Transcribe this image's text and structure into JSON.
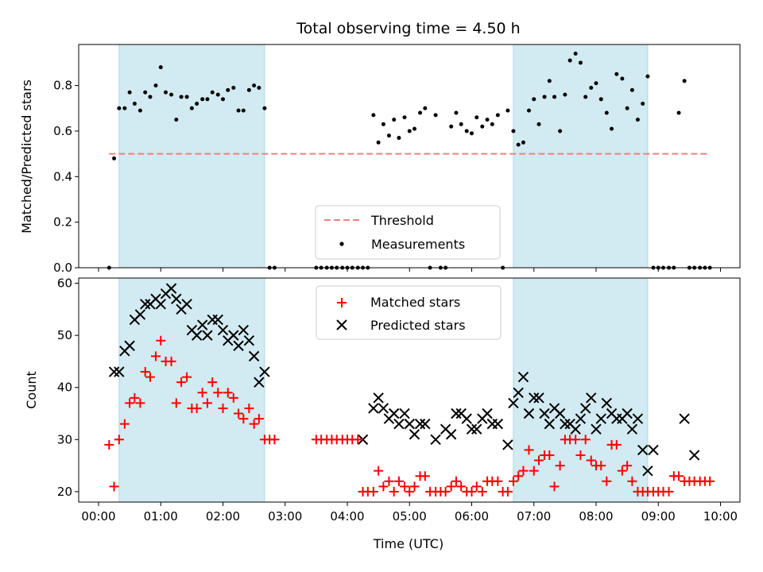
{
  "chart_data": {
    "title": "Total observing time = 4.50 h",
    "xlabel": "Time (UTC)",
    "x_tick_labels": [
      "00:00",
      "01:00",
      "02:00",
      "03:00",
      "04:00",
      "05:00",
      "06:00",
      "07:00",
      "08:00",
      "09:00",
      "10:00"
    ],
    "shaded_intervals_hours": [
      [
        0.33,
        2.67
      ],
      [
        6.67,
        8.83
      ]
    ],
    "shade_color": "#add8e6",
    "panels": [
      {
        "type": "scatter",
        "ylabel": "Matched/Predicted stars",
        "ylim": [
          0,
          0.98
        ],
        "yticks": [
          0.0,
          0.2,
          0.4,
          0.6,
          0.8
        ],
        "ytick_labels": [
          "0.0",
          "0.2",
          "0.4",
          "0.6",
          "0.8"
        ],
        "legend_position": "lower-center",
        "threshold": {
          "name": "Threshold",
          "value": 0.5,
          "x_range": [
            0.17,
            9.83
          ],
          "color": "#f08080"
        },
        "series": [
          {
            "name": "Measurements",
            "color": "#000000",
            "marker": "dot",
            "x": [
              0.17,
              0.25,
              0.33,
              0.42,
              0.5,
              0.58,
              0.67,
              0.75,
              0.83,
              0.92,
              1.0,
              1.08,
              1.17,
              1.25,
              1.33,
              1.42,
              1.5,
              1.58,
              1.67,
              1.75,
              1.83,
              1.92,
              2.0,
              2.08,
              2.17,
              2.25,
              2.33,
              2.42,
              2.5,
              2.58,
              2.67,
              2.75,
              2.83,
              3.5,
              3.58,
              3.67,
              3.75,
              3.83,
              3.92,
              4.0,
              4.08,
              4.17,
              4.25,
              4.33,
              4.42,
              4.5,
              4.58,
              4.67,
              4.75,
              4.83,
              4.92,
              5.0,
              5.08,
              5.17,
              5.25,
              5.33,
              5.42,
              5.5,
              5.58,
              5.67,
              5.75,
              5.83,
              5.92,
              6.0,
              6.08,
              6.17,
              6.25,
              6.33,
              6.42,
              6.5,
              6.58,
              6.67,
              6.75,
              6.83,
              6.92,
              7.0,
              7.08,
              7.17,
              7.25,
              7.33,
              7.42,
              7.5,
              7.58,
              7.67,
              7.75,
              7.83,
              7.92,
              8.0,
              8.08,
              8.17,
              8.25,
              8.33,
              8.42,
              8.5,
              8.58,
              8.67,
              8.75,
              8.83,
              8.92,
              9.0,
              9.08,
              9.17,
              9.25,
              9.33,
              9.42,
              9.5,
              9.58,
              9.67,
              9.75,
              9.83
            ],
            "y": [
              0.0,
              0.48,
              0.7,
              0.7,
              0.77,
              0.72,
              0.69,
              0.77,
              0.75,
              0.8,
              0.88,
              0.77,
              0.76,
              0.65,
              0.75,
              0.75,
              0.7,
              0.72,
              0.74,
              0.74,
              0.77,
              0.76,
              0.74,
              0.78,
              0.79,
              0.69,
              0.69,
              0.78,
              0.8,
              0.79,
              0.7,
              0.0,
              0.0,
              0.0,
              0.0,
              0.0,
              0.0,
              0.0,
              0.0,
              0.0,
              0.0,
              0.0,
              0.0,
              0.0,
              0.67,
              0.55,
              0.63,
              0.58,
              0.65,
              0.57,
              0.66,
              0.6,
              0.61,
              0.68,
              0.7,
              0.0,
              0.67,
              0.0,
              0.0,
              0.62,
              0.68,
              0.63,
              0.6,
              0.59,
              0.66,
              0.62,
              0.65,
              0.63,
              0.67,
              0.0,
              0.69,
              0.6,
              0.54,
              0.55,
              0.69,
              0.74,
              0.63,
              0.75,
              0.82,
              0.75,
              0.6,
              0.76,
              0.91,
              0.94,
              0.9,
              0.75,
              0.79,
              0.81,
              0.74,
              0.68,
              0.61,
              0.85,
              0.83,
              0.7,
              0.78,
              0.65,
              0.72,
              0.84,
              0.0,
              0.0,
              0.0,
              0.0,
              0.0,
              0.68,
              0.82,
              0.0,
              0.0,
              0.0,
              0.0,
              0.0
            ]
          }
        ]
      },
      {
        "type": "scatter",
        "ylabel": "Count",
        "ylim": [
          18,
          61
        ],
        "yticks": [
          20,
          30,
          40,
          50,
          60
        ],
        "ytick_labels": [
          "20",
          "30",
          "40",
          "50",
          "60"
        ],
        "legend_position": "upper-center",
        "series": [
          {
            "name": "Matched stars",
            "color": "#ff0000",
            "marker": "plus",
            "x": [
              0.17,
              0.25,
              0.33,
              0.42,
              0.5,
              0.58,
              0.67,
              0.75,
              0.83,
              0.92,
              1.0,
              1.08,
              1.17,
              1.25,
              1.33,
              1.42,
              1.5,
              1.58,
              1.67,
              1.75,
              1.83,
              1.92,
              2.0,
              2.08,
              2.17,
              2.25,
              2.33,
              2.42,
              2.5,
              2.58,
              2.67,
              2.75,
              2.83,
              3.5,
              3.58,
              3.67,
              3.75,
              3.83,
              3.92,
              4.0,
              4.08,
              4.17,
              4.25,
              4.33,
              4.42,
              4.5,
              4.58,
              4.67,
              4.75,
              4.83,
              4.92,
              5.0,
              5.08,
              5.17,
              5.25,
              5.33,
              5.42,
              5.5,
              5.58,
              5.67,
              5.75,
              5.83,
              5.92,
              6.0,
              6.08,
              6.17,
              6.25,
              6.33,
              6.42,
              6.5,
              6.58,
              6.67,
              6.75,
              6.83,
              6.92,
              7.0,
              7.08,
              7.17,
              7.25,
              7.33,
              7.42,
              7.5,
              7.58,
              7.67,
              7.75,
              7.83,
              7.92,
              8.0,
              8.08,
              8.17,
              8.25,
              8.33,
              8.42,
              8.5,
              8.58,
              8.67,
              8.75,
              8.83,
              8.92,
              9.0,
              9.08,
              9.17,
              9.25,
              9.33,
              9.42,
              9.5,
              9.58,
              9.67,
              9.75,
              9.83
            ],
            "y": [
              29,
              21,
              30,
              33,
              37,
              38,
              37,
              43,
              42,
              46,
              49,
              45,
              45,
              37,
              41,
              42,
              36,
              36,
              39,
              37,
              41,
              39,
              36,
              39,
              38,
              35,
              34,
              36,
              33,
              34,
              30,
              30,
              30,
              30,
              30,
              30,
              30,
              30,
              30,
              30,
              30,
              30,
              20,
              20,
              20,
              24,
              21,
              22,
              20,
              22,
              21,
              20,
              21,
              23,
              23,
              20,
              20,
              20,
              20,
              21,
              22,
              21,
              20,
              20,
              21,
              20,
              22,
              22,
              22,
              20,
              20,
              22,
              23,
              24,
              28,
              24,
              26,
              27,
              27,
              21,
              25,
              30,
              30,
              30,
              27,
              30,
              26,
              25,
              25,
              22,
              29,
              29,
              24,
              25,
              22,
              20,
              20,
              20,
              20,
              20,
              20,
              20,
              23,
              23,
              22,
              22,
              22,
              22,
              22,
              22
            ]
          },
          {
            "name": "Predicted stars",
            "color": "#000000",
            "marker": "x",
            "x": [
              0.25,
              0.33,
              0.42,
              0.5,
              0.58,
              0.67,
              0.75,
              0.83,
              0.92,
              1.0,
              1.08,
              1.17,
              1.25,
              1.33,
              1.42,
              1.5,
              1.58,
              1.67,
              1.75,
              1.83,
              1.92,
              2.0,
              2.08,
              2.17,
              2.25,
              2.33,
              2.42,
              2.5,
              2.58,
              2.67,
              4.25,
              4.42,
              4.5,
              4.58,
              4.67,
              4.75,
              4.83,
              4.92,
              5.0,
              5.08,
              5.17,
              5.25,
              5.42,
              5.58,
              5.67,
              5.75,
              5.83,
              5.92,
              6.0,
              6.08,
              6.17,
              6.25,
              6.33,
              6.42,
              6.58,
              6.67,
              6.75,
              6.83,
              6.92,
              7.0,
              7.08,
              7.17,
              7.25,
              7.33,
              7.42,
              7.5,
              7.58,
              7.67,
              7.75,
              7.83,
              7.92,
              8.0,
              8.08,
              8.17,
              8.25,
              8.33,
              8.42,
              8.5,
              8.58,
              8.67,
              8.75,
              8.83,
              8.92,
              9.42,
              9.58
            ],
            "y": [
              43,
              43,
              47,
              48,
              53,
              54,
              56,
              56,
              57,
              56,
              58,
              59,
              57,
              55,
              56,
              51,
              50,
              52,
              50,
              53,
              53,
              51,
              49,
              50,
              48,
              51,
              49,
              46,
              41,
              43,
              30,
              36,
              38,
              36,
              34,
              35,
              33,
              35,
              33,
              31,
              33,
              33,
              30,
              32,
              31,
              35,
              35,
              34,
              32,
              32,
              34,
              35,
              33,
              33,
              29,
              37,
              39,
              42,
              35,
              38,
              38,
              35,
              33,
              36,
              35,
              33,
              33,
              32,
              34,
              36,
              38,
              32,
              34,
              37,
              35,
              34,
              34,
              35,
              32,
              34,
              28,
              24,
              28,
              34,
              27
            ]
          }
        ]
      }
    ]
  }
}
